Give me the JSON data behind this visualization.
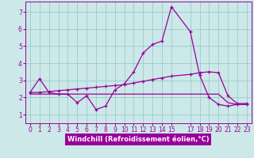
{
  "xlabel": "Windchill (Refroidissement éolien,°C)",
  "background_color": "#cce8e8",
  "grid_color": "#99cccc",
  "line_color": "#990099",
  "tick_color": "#990099",
  "xlim": [
    -0.5,
    23.5
  ],
  "ylim": [
    0.5,
    7.6
  ],
  "xticks": [
    0,
    1,
    2,
    3,
    4,
    5,
    6,
    7,
    8,
    9,
    10,
    11,
    12,
    13,
    14,
    15,
    17,
    18,
    19,
    20,
    21,
    22,
    23
  ],
  "yticks": [
    1,
    2,
    3,
    4,
    5,
    6,
    7
  ],
  "line1_x": [
    0,
    1,
    2,
    3,
    4,
    5,
    6,
    7,
    8,
    9,
    10,
    11,
    12,
    13,
    14,
    15,
    17,
    18,
    19,
    20,
    21,
    22,
    23
  ],
  "line1_y": [
    2.3,
    3.1,
    2.3,
    2.2,
    2.2,
    1.7,
    2.1,
    1.3,
    1.5,
    2.45,
    2.8,
    3.5,
    4.6,
    5.1,
    5.3,
    7.3,
    5.85,
    3.3,
    2.0,
    1.6,
    1.5,
    1.6,
    1.6
  ],
  "line2_x": [
    0,
    1,
    2,
    3,
    4,
    5,
    6,
    7,
    8,
    9,
    10,
    11,
    12,
    13,
    14,
    15,
    17,
    18,
    19,
    20,
    21,
    22,
    23
  ],
  "line2_y": [
    2.3,
    2.3,
    2.35,
    2.4,
    2.45,
    2.5,
    2.55,
    2.6,
    2.65,
    2.7,
    2.75,
    2.85,
    2.95,
    3.05,
    3.15,
    3.25,
    3.35,
    3.45,
    3.5,
    3.45,
    2.1,
    1.65,
    1.65
  ],
  "line3_x": [
    0,
    1,
    2,
    3,
    4,
    5,
    6,
    7,
    8,
    9,
    10,
    11,
    12,
    13,
    14,
    15,
    17,
    18,
    19,
    20,
    21,
    22,
    23
  ],
  "line3_y": [
    2.2,
    2.2,
    2.2,
    2.2,
    2.2,
    2.2,
    2.2,
    2.2,
    2.2,
    2.2,
    2.2,
    2.2,
    2.2,
    2.2,
    2.2,
    2.2,
    2.2,
    2.2,
    2.2,
    2.2,
    1.7,
    1.6,
    1.6
  ],
  "tick_fontsize": 5.5,
  "label_fontsize": 6.0,
  "linewidth": 0.9,
  "markersize": 2.5
}
